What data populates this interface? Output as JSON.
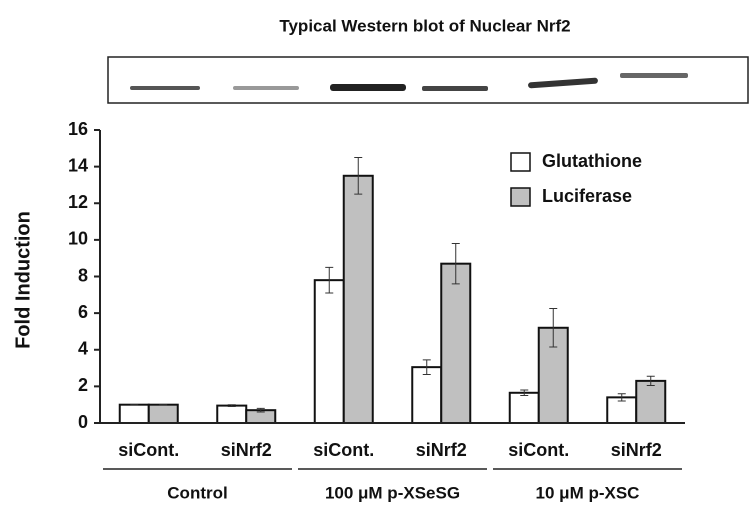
{
  "chart_data": {
    "type": "bar",
    "title": "Typical Western blot of Nuclear Nrf2",
    "ylabel": "Fold Induction",
    "categories": [
      "siCont.",
      "siNrf2",
      "siCont.",
      "siNrf2",
      "siCont.",
      "siNrf2"
    ],
    "groups": [
      "Control",
      "100 μM p-XSeSG",
      "10 μM p-XSC"
    ],
    "series": [
      {
        "name": "Glutathione",
        "color": "#ffffff",
        "values": [
          1,
          0.95,
          7.8,
          3.05,
          1.65,
          1.4
        ],
        "errors": [
          0,
          0.05,
          0.7,
          0.4,
          0.15,
          0.2
        ]
      },
      {
        "name": "Luciferase",
        "color": "#c0c0c0",
        "values": [
          1,
          0.7,
          13.5,
          8.7,
          5.2,
          2.3
        ],
        "errors": [
          0,
          0.1,
          1.0,
          1.1,
          1.05,
          0.25
        ]
      }
    ],
    "ylim": [
      0,
      16
    ],
    "yticks": [
      0,
      2,
      4,
      6,
      8,
      10,
      12,
      14,
      16
    ]
  }
}
